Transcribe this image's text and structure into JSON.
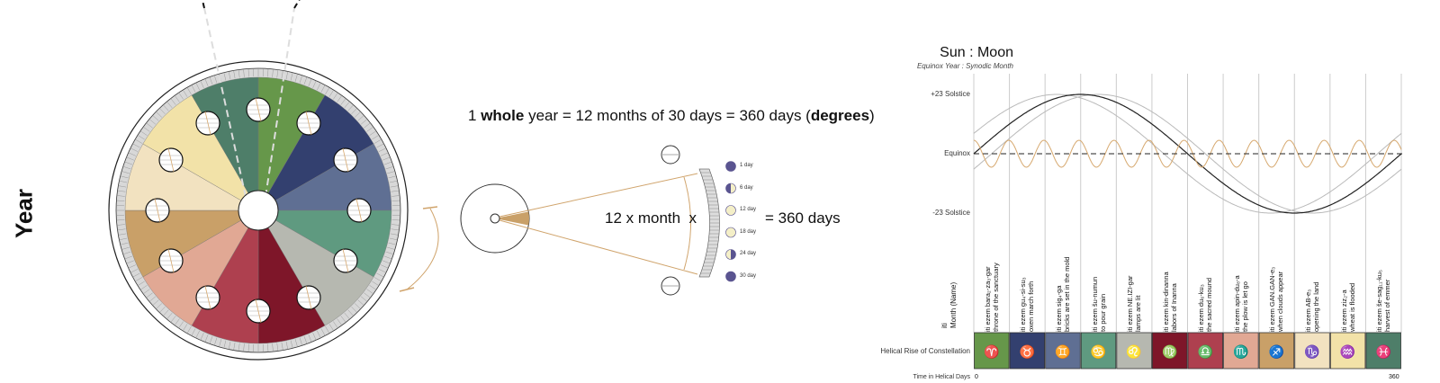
{
  "year_label": "Year",
  "equation": {
    "prefix": "1 ",
    "whole": "whole",
    "middle": " year = 12 months of 30 days = 360 days (",
    "degrees": "degrees",
    "suffix": ")"
  },
  "month_equation": "12 x month  x",
  "days_equation": "= 360 days",
  "moon_phases": [
    {
      "label": "1 day",
      "phase": "new"
    },
    {
      "label": "6 day",
      "phase": "first-crescent"
    },
    {
      "label": "12 day",
      "phase": "waxing-gibbous"
    },
    {
      "label": "18 day",
      "phase": "full"
    },
    {
      "label": "24 day",
      "phase": "last-quarter"
    },
    {
      "label": "30 day",
      "phase": "new"
    }
  ],
  "sun_moon": {
    "title": "Sun : Moon",
    "subtitle": "Equinox Year : Synodic Month",
    "y_labels": [
      "+23 Solstice",
      "Equinox",
      "-23 Solstice"
    ],
    "month_header": "iti\nMonth (Name)",
    "constellation_label": "Helical Rise of Constellation",
    "time_label": "Time in Helical Days",
    "x_start": "0",
    "x_end": "360",
    "colors": {
      "sun": "#222222",
      "sun_band": "#b9b9b9",
      "moon": "#d6a86e",
      "grid": "#cccccc"
    }
  },
  "months": [
    {
      "name": "iti ezem bara₂-za₃-gar",
      "meaning": "throne of the sanctuary",
      "sign": "♈",
      "color": "#66974a"
    },
    {
      "name": "iti ezem gu₄-si-su₃",
      "meaning": "oxen march forth",
      "sign": "♉",
      "color": "#33406f"
    },
    {
      "name": "iti ezem sig₄-ga",
      "meaning": "bricks are set in the mold",
      "sign": "♊",
      "color": "#5f6f93"
    },
    {
      "name": "iti ezem šu-numun",
      "meaning": "to pour grain",
      "sign": "♋",
      "color": "#5f9a80"
    },
    {
      "name": "iti ezem NE.IZI-gar",
      "meaning": "lamps are lit",
      "sign": "♌",
      "color": "#b6b8b0"
    },
    {
      "name": "iti ezem kin-dinanna",
      "meaning": "labors of Inanna",
      "sign": "♍",
      "color": "#7e1629"
    },
    {
      "name": "iti ezem du₆-ku₃",
      "meaning": "the sacred mound",
      "sign": "♎",
      "color": "#ae404f"
    },
    {
      "name": "iti ezem apin-du₈-a",
      "meaning": "the plow is let go",
      "sign": "♏",
      "color": "#e1a894"
    },
    {
      "name": "iti ezem GAN.GAN-e₃",
      "meaning": "when clouds appear",
      "sign": "♐",
      "color": "#c9a068"
    },
    {
      "name": "iti ezem AB-e₃",
      "meaning": "opening the land",
      "sign": "♑",
      "color": "#f2e2c0"
    },
    {
      "name": "iti ezem ziz₂-a",
      "meaning": "wheat is flooded",
      "sign": "♒",
      "color": "#f2e2a8"
    },
    {
      "name": "iti ezem še-sag₁₁-ku₅",
      "meaning": "harvest of emmer",
      "sign": "♓",
      "color": "#4e7e69"
    }
  ],
  "accent_color": "#d0a46c"
}
